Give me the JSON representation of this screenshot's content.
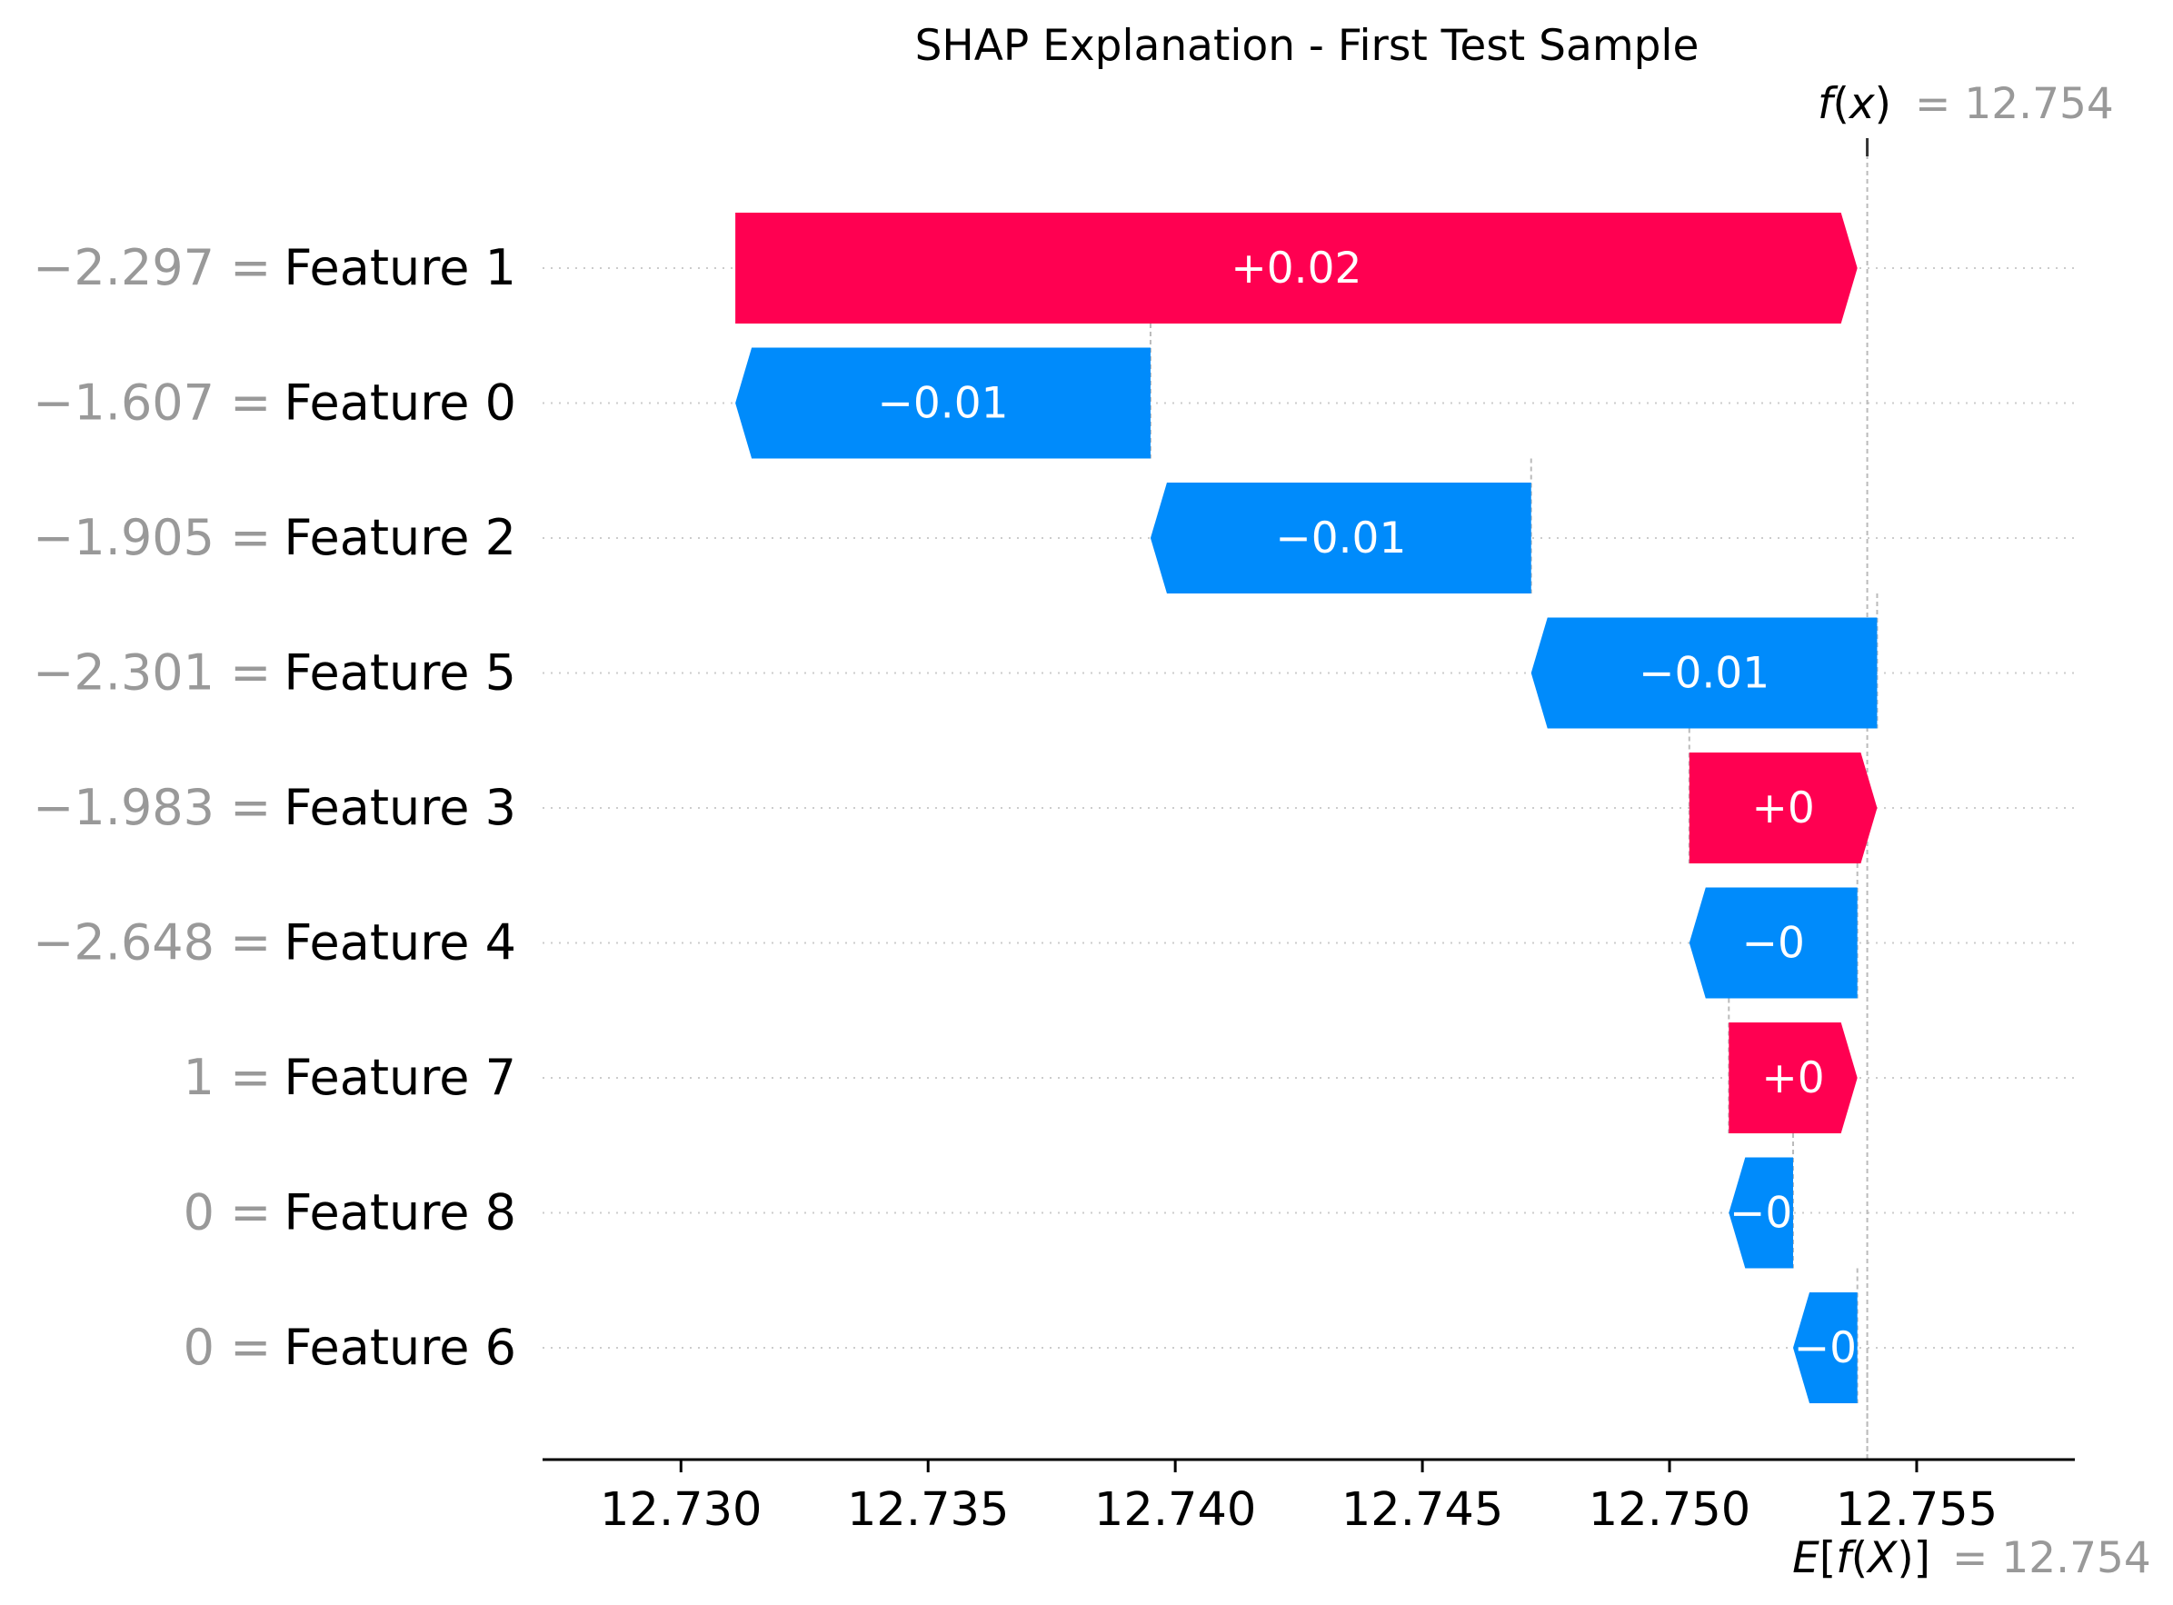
{
  "chart_data": {
    "type": "waterfall",
    "title": "SHAP Explanation - First Test Sample",
    "base_value": 12.754,
    "base_label": "E[f(X)]",
    "base_value_label": "= 12.754",
    "output_value": 12.754,
    "output_label": "f(x)",
    "output_value_label": "= 12.754",
    "xlim": [
      12.7272,
      12.7582
    ],
    "x_ticks": [
      {
        "value": 12.73,
        "label": "12.730"
      },
      {
        "value": 12.735,
        "label": "12.735"
      },
      {
        "value": 12.74,
        "label": "12.740"
      },
      {
        "value": 12.745,
        "label": "12.745"
      },
      {
        "value": 12.75,
        "label": "12.750"
      },
      {
        "value": 12.755,
        "label": "12.755"
      }
    ],
    "grid": "dotted-horizontal",
    "colors": {
      "positive": "#ff0051",
      "negative": "#008bfb"
    },
    "features": [
      {
        "name": "Feature 1",
        "value_label": "−2.297 =",
        "start": 12.7311,
        "end": 12.7538,
        "shap_label": "+0.02"
      },
      {
        "name": "Feature 0",
        "value_label": "−1.607 =",
        "start": 12.7395,
        "end": 12.7311,
        "shap_label": "−0.01"
      },
      {
        "name": "Feature 2",
        "value_label": "−1.905 =",
        "start": 12.7472,
        "end": 12.7395,
        "shap_label": "−0.01"
      },
      {
        "name": "Feature 5",
        "value_label": "−2.301 =",
        "start": 12.7542,
        "end": 12.7472,
        "shap_label": "−0.01"
      },
      {
        "name": "Feature 3",
        "value_label": "−1.983 =",
        "start": 12.7504,
        "end": 12.7542,
        "shap_label": "+0"
      },
      {
        "name": "Feature 4",
        "value_label": "−2.648 =",
        "start": 12.7538,
        "end": 12.7504,
        "shap_label": "−0"
      },
      {
        "name": "Feature 7",
        "value_label": "1 =",
        "start": 12.7512,
        "end": 12.7538,
        "shap_label": "+0"
      },
      {
        "name": "Feature 8",
        "value_label": "0 =",
        "start": 12.7525,
        "end": 12.7512,
        "shap_label": "−0"
      },
      {
        "name": "Feature 6",
        "value_label": "0 =",
        "start": 12.7538,
        "end": 12.7525,
        "shap_label": "−0"
      }
    ]
  }
}
